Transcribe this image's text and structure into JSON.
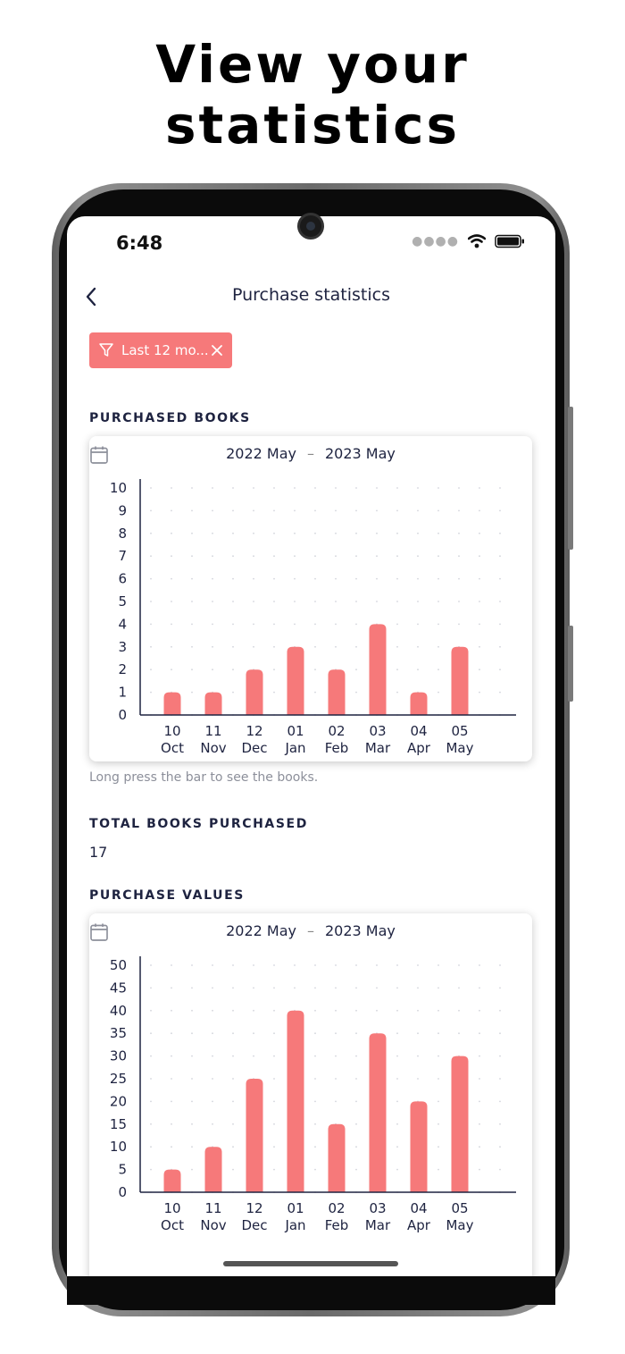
{
  "headline": "View your statistics",
  "status_bar": {
    "time": "6:48"
  },
  "nav": {
    "title": "Purchase statistics"
  },
  "filter_chip": {
    "label": "Last 12 mo..."
  },
  "books_section": {
    "label": "PURCHASED BOOKS",
    "date_from": "2022 May",
    "date_to": "2023 May",
    "hint": "Long press the bar to see the books."
  },
  "total_section": {
    "label": "TOTAL BOOKS PURCHASED",
    "value": "17"
  },
  "values_section": {
    "label": "PURCHASE VALUES",
    "date_from": "2022 May",
    "date_to": "2023 May"
  },
  "colors": {
    "accent": "#f6797a",
    "text_dark": "#1e2340",
    "hint": "#8c8f9a"
  },
  "chart_data": [
    {
      "type": "bar",
      "categories": [
        [
          "10",
          "Oct"
        ],
        [
          "11",
          "Nov"
        ],
        [
          "12",
          "Dec"
        ],
        [
          "01",
          "Jan"
        ],
        [
          "02",
          "Feb"
        ],
        [
          "03",
          "Mar"
        ],
        [
          "04",
          "Apr"
        ],
        [
          "05",
          "May"
        ]
      ],
      "values": [
        1,
        1,
        2,
        3,
        2,
        4,
        1,
        3
      ],
      "yticks": [
        "0",
        "1",
        "2",
        "3",
        "4",
        "5",
        "6",
        "7",
        "8",
        "9",
        "10"
      ],
      "ylim": [
        0,
        10
      ],
      "grid": "dotted"
    },
    {
      "type": "bar",
      "categories": [
        [
          "10",
          "Oct"
        ],
        [
          "11",
          "Nov"
        ],
        [
          "12",
          "Dec"
        ],
        [
          "01",
          "Jan"
        ],
        [
          "02",
          "Feb"
        ],
        [
          "03",
          "Mar"
        ],
        [
          "04",
          "Apr"
        ],
        [
          "05",
          "May"
        ]
      ],
      "values": [
        5,
        10,
        25,
        40,
        15,
        35,
        20,
        30
      ],
      "yticks": [
        "0",
        "5",
        "10",
        "15",
        "20",
        "25",
        "30",
        "35",
        "40",
        "45",
        "50"
      ],
      "ylim": [
        0,
        50
      ],
      "grid": "dotted"
    }
  ]
}
